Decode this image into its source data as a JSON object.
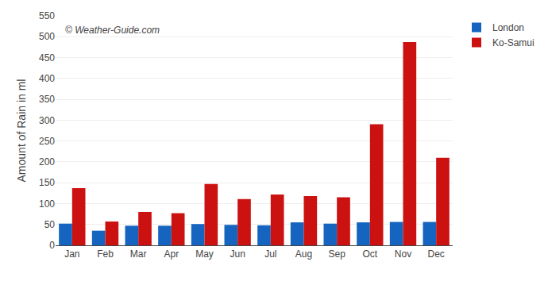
{
  "chart_data": {
    "type": "bar",
    "ylabel": "Amount of Rain in ml",
    "categories": [
      "Jan",
      "Feb",
      "Mar",
      "Apr",
      "May",
      "Jun",
      "Jul",
      "Aug",
      "Sep",
      "Oct",
      "Nov",
      "Dec"
    ],
    "series": [
      {
        "name": "London",
        "color": "#1565c0",
        "values": [
          52,
          35,
          47,
          47,
          51,
          49,
          48,
          55,
          52,
          55,
          56,
          56
        ]
      },
      {
        "name": "Ko-Samui",
        "color": "#cc1111",
        "values": [
          137,
          57,
          80,
          77,
          147,
          111,
          122,
          118,
          115,
          290,
          487,
          210
        ]
      }
    ],
    "ylim": [
      0,
      550
    ],
    "yticks": [
      0,
      50,
      100,
      150,
      200,
      250,
      300,
      350,
      400,
      450,
      500,
      550
    ],
    "grid": true,
    "legend": "upper right",
    "annotations": [
      "© Weather-Guide.com"
    ]
  }
}
